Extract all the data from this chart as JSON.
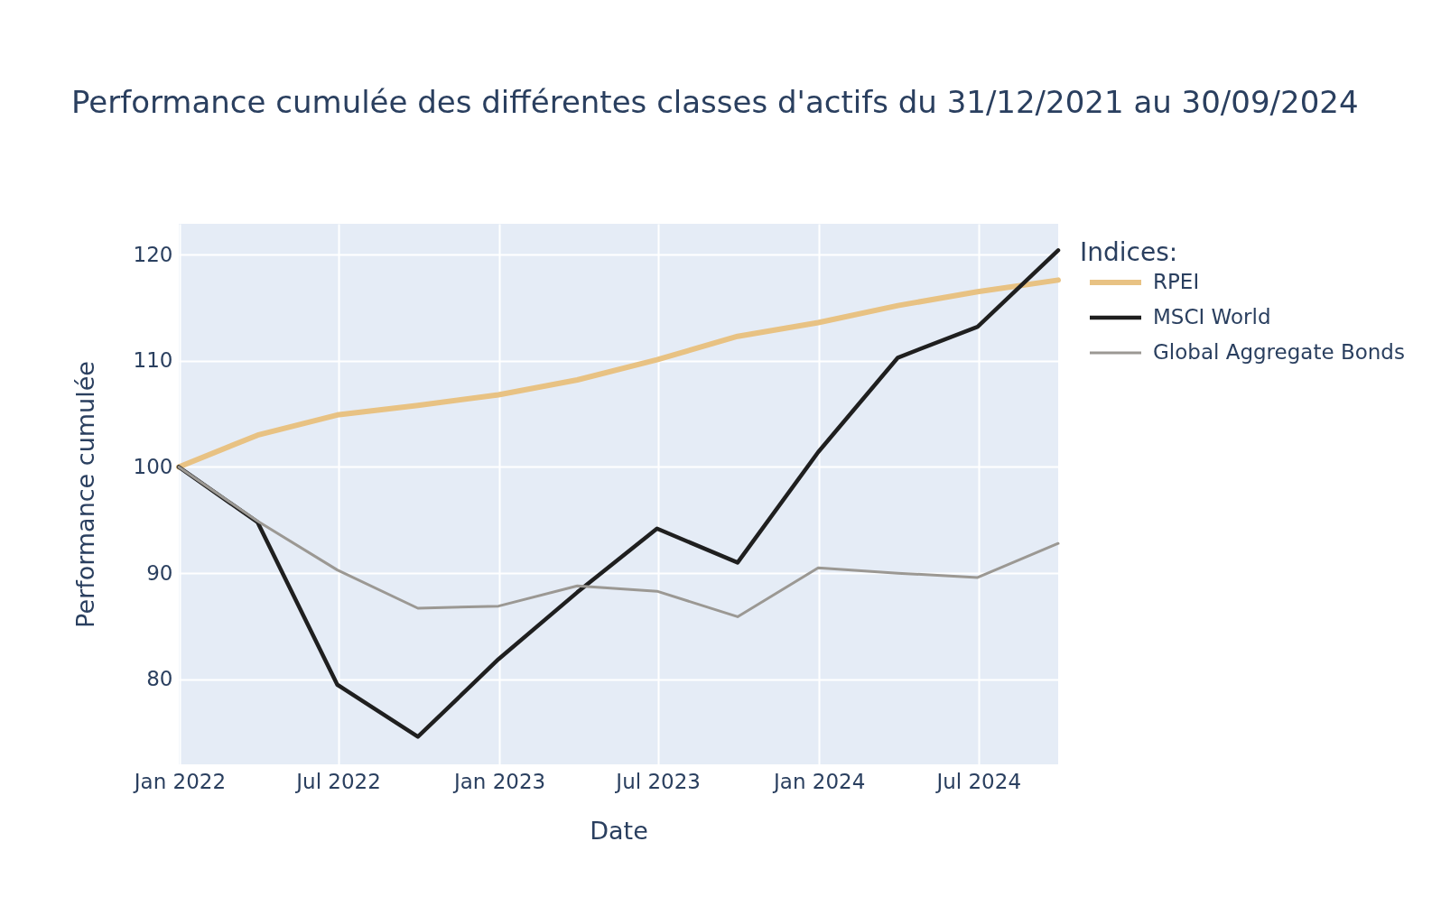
{
  "chart_data": {
    "type": "line",
    "title": "Performance cumulée des différentes classes d'actifs du 31/12/2021 au 30/09/2024",
    "xlabel": "Date",
    "ylabel": "Performance cumulée",
    "legend_title": "Indices:",
    "x": [
      "2021-12-31",
      "2022-03-31",
      "2022-06-30",
      "2022-09-30",
      "2022-12-31",
      "2023-03-31",
      "2023-06-30",
      "2023-09-30",
      "2023-12-31",
      "2024-03-31",
      "2024-06-30",
      "2024-09-30"
    ],
    "series": [
      {
        "name": "RPEI",
        "color": "#e8c283",
        "values": [
          100,
          103.0,
          104.9,
          105.8,
          106.8,
          108.2,
          110.1,
          112.3,
          113.6,
          115.2,
          116.5,
          117.6
        ]
      },
      {
        "name": "MSCI World",
        "color": "#1f1f1f",
        "values": [
          100,
          94.8,
          79.5,
          74.6,
          81.9,
          88.2,
          94.2,
          91.0,
          101.4,
          110.3,
          113.2,
          120.4
        ]
      },
      {
        "name": "Global Aggregate Bonds",
        "color": "#9b9893",
        "values": [
          100,
          94.9,
          90.3,
          86.7,
          86.9,
          88.8,
          88.3,
          85.9,
          90.5,
          90.0,
          89.6,
          92.8
        ]
      }
    ],
    "xlim": [
      "2021-12-31",
      "2024-09-30"
    ],
    "xticks": [
      {
        "value": "2022-01-01",
        "label": "Jan 2022"
      },
      {
        "value": "2022-07-01",
        "label": "Jul 2022"
      },
      {
        "value": "2023-01-01",
        "label": "Jan 2023"
      },
      {
        "value": "2023-07-01",
        "label": "Jul 2023"
      },
      {
        "value": "2024-01-01",
        "label": "Jan 2024"
      },
      {
        "value": "2024-07-01",
        "label": "Jul 2024"
      }
    ],
    "ylim": [
      72,
      122.9
    ],
    "yticks": [
      80,
      90,
      100,
      110,
      120
    ],
    "grid": true,
    "legend": "right"
  }
}
